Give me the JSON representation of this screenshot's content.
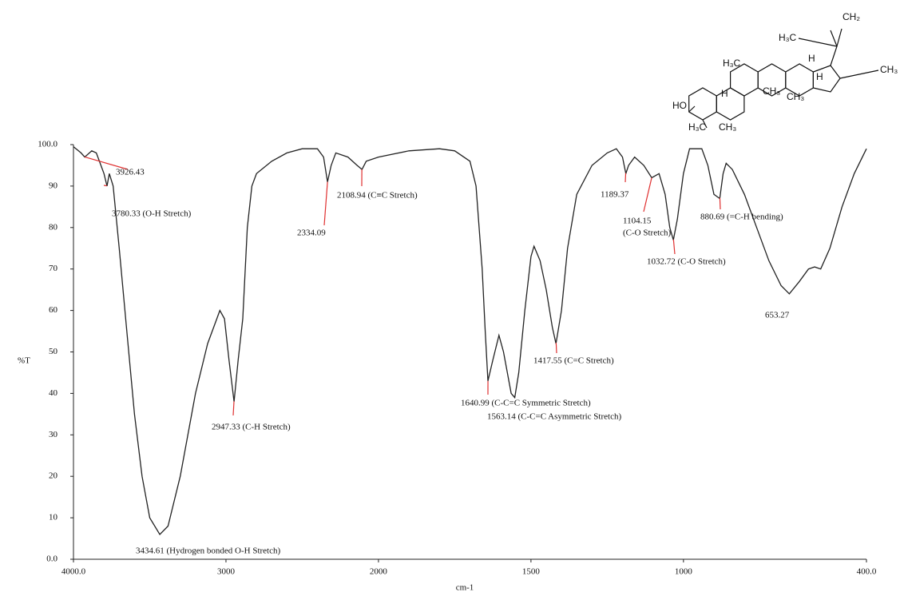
{
  "chart_data": {
    "type": "line",
    "x": [
      4000,
      3950,
      3926,
      3880,
      3850,
      3800,
      3780,
      3765,
      3740,
      3700,
      3650,
      3600,
      3550,
      3500,
      3434,
      3380,
      3300,
      3200,
      3120,
      3060,
      3040,
      3010,
      2980,
      2947,
      2920,
      2890,
      2860,
      2830,
      2800,
      2700,
      2600,
      2500,
      2400,
      2360,
      2334,
      2310,
      2280,
      2200,
      2140,
      2108,
      2080,
      2000,
      1900,
      1800,
      1750,
      1700,
      1680,
      1660,
      1650,
      1641,
      1625,
      1605,
      1590,
      1565,
      1553,
      1540,
      1520,
      1500,
      1490,
      1470,
      1450,
      1430,
      1418,
      1400,
      1380,
      1350,
      1300,
      1250,
      1220,
      1200,
      1189,
      1180,
      1160,
      1130,
      1104,
      1080,
      1060,
      1045,
      1033,
      1020,
      1000,
      980,
      940,
      920,
      900,
      881,
      870,
      860,
      840,
      800,
      760,
      720,
      680,
      653,
      620,
      590,
      570,
      550,
      520,
      480,
      440,
      400
    ],
    "values": [
      99.5,
      98,
      97,
      98.5,
      98,
      93,
      90,
      93,
      90,
      75,
      55,
      35,
      20,
      10,
      6,
      8,
      20,
      40,
      52,
      58,
      60,
      58,
      48,
      38,
      48,
      58,
      80,
      90,
      93,
      96,
      98,
      99,
      99,
      97,
      91,
      95,
      98,
      97,
      95,
      94,
      96,
      97,
      98.5,
      99,
      98.5,
      96,
      90,
      70,
      55,
      43,
      48,
      54,
      50,
      40,
      39,
      45,
      60,
      73,
      75.5,
      72,
      65,
      56,
      52,
      60,
      75,
      88,
      95,
      98,
      99,
      97,
      93,
      95,
      97,
      95,
      92,
      93,
      88,
      80,
      77,
      82,
      93,
      99,
      99,
      95,
      88,
      87,
      93,
      95.5,
      94,
      88,
      80,
      72,
      66,
      64,
      67,
      70,
      70.5,
      70,
      75,
      85,
      93,
      99
    ],
    "color": "#222222",
    "xlim": [
      4000,
      400
    ],
    "x_expansion": {
      "below": 2000,
      "factor": 2
    },
    "xticks": [
      {
        "value": 4000,
        "label": "4000.0"
      },
      3000,
      2000,
      1500,
      1000,
      {
        "value": 400,
        "label": "400.0"
      }
    ],
    "ylim": [
      0,
      100
    ],
    "yticks": [
      {
        "value": 100,
        "label": "100.0"
      },
      90,
      80,
      70,
      60,
      50,
      40,
      30,
      20,
      10,
      {
        "value": 0,
        "label": "0.0"
      }
    ],
    "xlabel": "cm-1",
    "ylabel": "%T",
    "annotation_color": "#e03030",
    "annotations": [
      {
        "x": 3926.43,
        "lines": [
          "3926.43"
        ]
      },
      {
        "x": 3780.33,
        "lines": [
          "3780.33 (O-H Stretch)"
        ]
      },
      {
        "x": 3434.61,
        "lines": [
          "3434.61 (Hydrogen bonded O-H Stretch)"
        ]
      },
      {
        "x": 2947.33,
        "lines": [
          "2947.33 (C-H Stretch)"
        ]
      },
      {
        "x": 2334.09,
        "lines": [
          "2334.09"
        ]
      },
      {
        "x": 2108.94,
        "lines": [
          "2108.94 (C≡C Stretch)"
        ]
      },
      {
        "x": 1640.99,
        "lines": [
          "1640.99 (C-C=C Symmetric Stretch)"
        ]
      },
      {
        "x": 1563.14,
        "lines": [
          "1563.14  (C-C=C Asymmetric Stretch)"
        ]
      },
      {
        "x": 1417.55,
        "lines": [
          "1417.55 (C=C Stretch)"
        ]
      },
      {
        "x": 1189.37,
        "lines": [
          "1189.37"
        ]
      },
      {
        "x": 1104.15,
        "lines": [
          "1104.15",
          "(C-O Stretch)"
        ]
      },
      {
        "x": 1032.72,
        "lines": [
          "1032.72 (C-O Stretch)"
        ]
      },
      {
        "x": 880.69,
        "lines": [
          "880.69  (=C-H bending)"
        ]
      },
      {
        "x": 653.27,
        "lines": [
          "653.27"
        ]
      }
    ]
  },
  "structure_labels": [
    "CH₂",
    "H₃C",
    "H",
    "CH₃",
    "H₃C",
    "CH₃",
    "H",
    "H",
    "CH₃",
    "HO",
    "H₃C",
    "CH₃"
  ]
}
